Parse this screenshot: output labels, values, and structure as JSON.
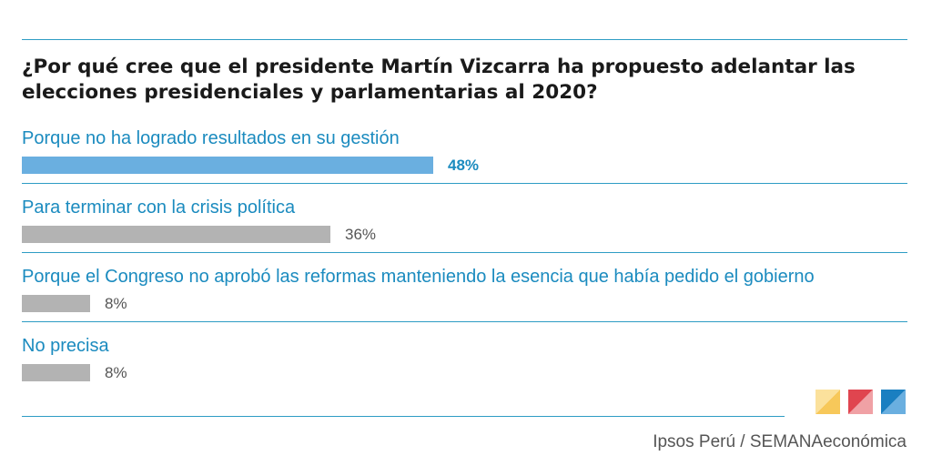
{
  "chart_data": {
    "type": "bar",
    "orientation": "horizontal",
    "title": "¿Por qué cree que el presidente Martín Vizcarra ha propuesto adelantar las elecciones presidenciales y parlamentarias al 2020?",
    "xlim": [
      0,
      48
    ],
    "categories": [
      "Porque no ha logrado resultados en su gestión",
      "Para terminar con la crisis política",
      "Porque el Congreso no aprobó las reformas manteniendo la esencia que había pedido el gobierno",
      "No precisa"
    ],
    "values": [
      48,
      36,
      8,
      8
    ],
    "value_labels": [
      "48%",
      "36%",
      "8%",
      "8%"
    ],
    "bar_colors": [
      "#6aafe0",
      "#b3b3b3",
      "#b3b3b3",
      "#b3b3b3"
    ],
    "highlight_index": 0,
    "highlight_color": "#1b8bbf"
  },
  "source": "Ipsos Perú / SEMANAeconómica",
  "colors": {
    "accent": "#1b8bbf",
    "rule": "#2e9cc4",
    "logo_squares": [
      "#f7c85a",
      "#e0454f",
      "#1a7fc1"
    ]
  }
}
